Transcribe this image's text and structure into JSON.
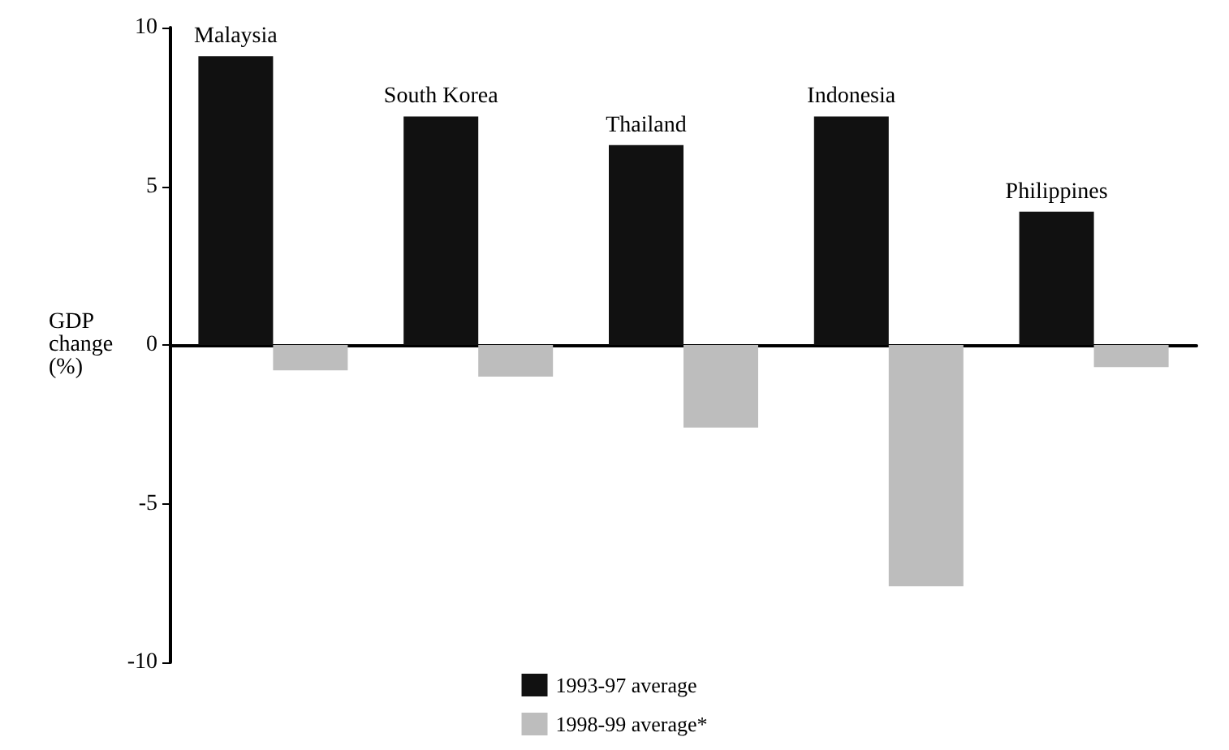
{
  "chart_data": {
    "type": "bar",
    "ylabel": "GDP change (%)",
    "categories": [
      "Malaysia",
      "South Korea",
      "Thailand",
      "Indonesia",
      "Philippines"
    ],
    "series": [
      {
        "name": "1993-97 average",
        "color": "#111111",
        "values": [
          9.1,
          7.2,
          6.3,
          7.2,
          4.2
        ]
      },
      {
        "name": "1998-99 average*",
        "color": "#bdbdbd",
        "values": [
          -0.8,
          -1.0,
          -2.6,
          -7.6,
          -0.7
        ]
      }
    ],
    "ylim": [
      -10,
      10
    ],
    "yticks": [
      -10,
      -5,
      0,
      5,
      10
    ],
    "legend": "bottom"
  }
}
